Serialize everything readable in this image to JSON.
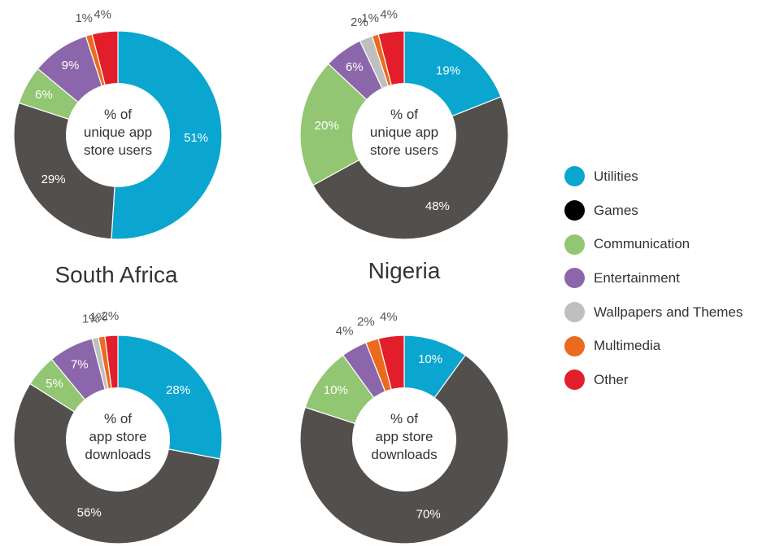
{
  "countries": [
    "South Africa",
    "Nigeria"
  ],
  "legend": [
    {
      "label": "Utilities",
      "color": "#0aa6d0"
    },
    {
      "label": "Games",
      "color": "#000000"
    },
    {
      "label": "Communication",
      "color": "#92c672"
    },
    {
      "label": "Entertainment",
      "color": "#8c66aa"
    },
    {
      "label": "Wallpapers and Themes",
      "color": "#c0bfbf"
    },
    {
      "label": "Multimedia",
      "color": "#ec6a1e"
    },
    {
      "label": "Other",
      "color": "#e21e2b"
    }
  ],
  "chart_data": [
    {
      "type": "pie",
      "country": "South Africa",
      "center_label": [
        "% of",
        "unique app",
        "store users"
      ],
      "slices": [
        {
          "category": "Utilities",
          "value": 51,
          "label": "51%",
          "color": "#0aa6d0"
        },
        {
          "category": "Games",
          "value": 29,
          "label": "29%",
          "color": "#524f4c"
        },
        {
          "category": "Communication",
          "value": 6,
          "label": "6%",
          "color": "#92c672"
        },
        {
          "category": "Entertainment",
          "value": 9,
          "label": "9%",
          "color": "#8c66aa"
        },
        {
          "category": "Multimedia",
          "value": 1,
          "label": "1%",
          "color": "#ec6a1e"
        },
        {
          "category": "Other",
          "value": 4,
          "label": "4%",
          "color": "#e21e2b"
        }
      ]
    },
    {
      "type": "pie",
      "country": "Nigeria",
      "center_label": [
        "% of",
        "unique app",
        "store users"
      ],
      "slices": [
        {
          "category": "Utilities",
          "value": 19,
          "label": "19%",
          "color": "#0aa6d0"
        },
        {
          "category": "Games",
          "value": 48,
          "label": "48%",
          "color": "#524f4c"
        },
        {
          "category": "Communication",
          "value": 20,
          "label": "20%",
          "color": "#92c672"
        },
        {
          "category": "Entertainment",
          "value": 6,
          "label": "6%",
          "color": "#8c66aa"
        },
        {
          "category": "Wallpapers and Themes",
          "value": 2,
          "label": "2%",
          "color": "#c0bfbf"
        },
        {
          "category": "Multimedia",
          "value": 1,
          "label": "1%",
          "color": "#ec6a1e"
        },
        {
          "category": "Other",
          "value": 4,
          "label": "4%",
          "color": "#e21e2b"
        }
      ]
    },
    {
      "type": "pie",
      "country": "South Africa",
      "center_label": [
        "% of",
        "app store",
        "downloads"
      ],
      "slices": [
        {
          "category": "Utilities",
          "value": 28,
          "label": "28%",
          "color": "#0aa6d0"
        },
        {
          "category": "Games",
          "value": 56,
          "label": "56%",
          "color": "#524f4c"
        },
        {
          "category": "Communication",
          "value": 5,
          "label": "5%",
          "color": "#92c672"
        },
        {
          "category": "Entertainment",
          "value": 7,
          "label": "7%",
          "color": "#8c66aa"
        },
        {
          "category": "Wallpapers and Themes",
          "value": 1,
          "label": "1%",
          "color": "#c0bfbf"
        },
        {
          "category": "Multimedia",
          "value": 1,
          "label": "1%",
          "color": "#ec6a1e"
        },
        {
          "category": "Other",
          "value": 2,
          "label": "2%",
          "color": "#e21e2b"
        }
      ]
    },
    {
      "type": "pie",
      "country": "Nigeria",
      "center_label": [
        "% of",
        "app store",
        "downloads"
      ],
      "slices": [
        {
          "category": "Utilities",
          "value": 10,
          "label": "10%",
          "color": "#0aa6d0"
        },
        {
          "category": "Games",
          "value": 70,
          "label": "70%",
          "color": "#524f4c"
        },
        {
          "category": "Communication",
          "value": 10,
          "label": "10%",
          "color": "#92c672"
        },
        {
          "category": "Entertainment",
          "value": 4,
          "label": "4%",
          "color": "#8c66aa"
        },
        {
          "category": "Multimedia",
          "value": 2,
          "label": "2%",
          "color": "#ec6a1e"
        },
        {
          "category": "Other",
          "value": 4,
          "label": "4%",
          "color": "#e21e2b"
        }
      ]
    }
  ]
}
